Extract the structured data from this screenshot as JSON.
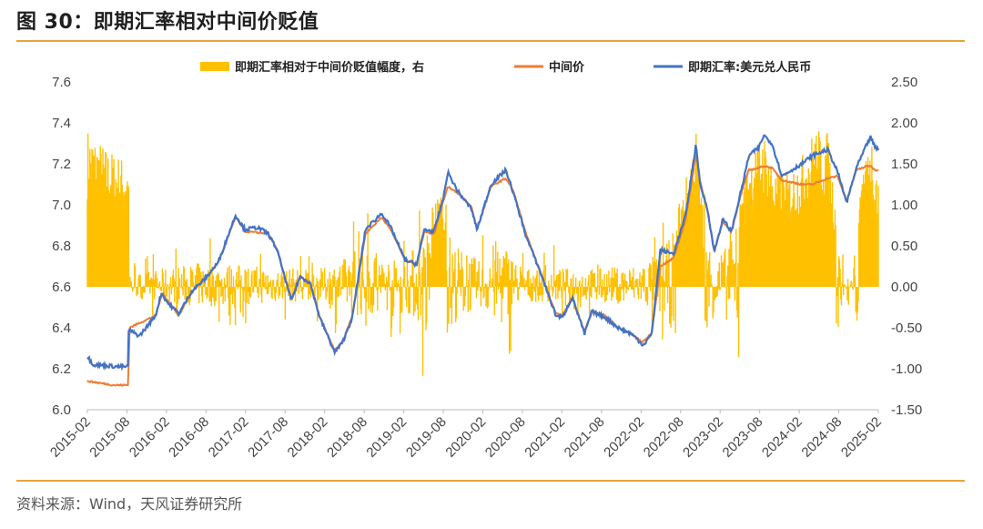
{
  "figure": {
    "title": "图 30：即期汇率相对中间价贬值",
    "source": "资料来源：Wind，天风证券研究所"
  },
  "colors": {
    "bar": "#FFC000",
    "mid": "#ED7D31",
    "spot": "#4472C4",
    "rule": "#E8A33B"
  },
  "chart_data": {
    "type": "line+bar",
    "legend": [
      "即期汇率相对于中间价贬值幅度，右",
      "中间价",
      "即期汇率:美元兑人民币"
    ],
    "legend_position": "top",
    "x_ticks": [
      "2015-02",
      "2015-08",
      "2016-02",
      "2016-08",
      "2017-02",
      "2017-08",
      "2018-02",
      "2018-08",
      "2019-02",
      "2019-08",
      "2020-02",
      "2020-08",
      "2021-02",
      "2021-08",
      "2022-02",
      "2022-08",
      "2023-02",
      "2023-08",
      "2024-02",
      "2024-08",
      "2025-02"
    ],
    "y_left": {
      "min": 6.0,
      "max": 7.6,
      "ticks": [
        "6.0",
        "6.2",
        "6.4",
        "6.6",
        "6.8",
        "7.0",
        "7.2",
        "7.4",
        "7.6"
      ]
    },
    "y_right": {
      "min": -1.5,
      "max": 2.5,
      "ticks": [
        "-1.50",
        "-1.00",
        "-0.50",
        "0.00",
        "0.50",
        "1.00",
        "1.50",
        "2.00",
        "2.50"
      ]
    },
    "grid": false,
    "spot_anchors": [
      [
        "2015-02-01",
        6.26
      ],
      [
        "2015-03-01",
        6.22
      ],
      [
        "2015-07-01",
        6.21
      ],
      [
        "2015-08-10",
        6.21
      ],
      [
        "2015-08-12",
        6.39
      ],
      [
        "2015-10-01",
        6.36
      ],
      [
        "2015-12-15",
        6.46
      ],
      [
        "2016-01-10",
        6.57
      ],
      [
        "2016-02-10",
        6.52
      ],
      [
        "2016-04-01",
        6.47
      ],
      [
        "2016-06-01",
        6.58
      ],
      [
        "2016-08-01",
        6.64
      ],
      [
        "2016-10-01",
        6.72
      ],
      [
        "2016-12-20",
        6.95
      ],
      [
        "2017-02-01",
        6.88
      ],
      [
        "2017-04-01",
        6.89
      ],
      [
        "2017-05-20",
        6.86
      ],
      [
        "2017-07-01",
        6.78
      ],
      [
        "2017-09-05",
        6.53
      ],
      [
        "2017-10-15",
        6.65
      ],
      [
        "2017-12-01",
        6.62
      ],
      [
        "2018-01-15",
        6.45
      ],
      [
        "2018-03-25",
        6.28
      ],
      [
        "2018-05-01",
        6.33
      ],
      [
        "2018-06-15",
        6.45
      ],
      [
        "2018-08-15",
        6.88
      ],
      [
        "2018-10-30",
        6.96
      ],
      [
        "2018-12-15",
        6.88
      ],
      [
        "2019-02-15",
        6.73
      ],
      [
        "2019-04-10",
        6.71
      ],
      [
        "2019-05-15",
        6.88
      ],
      [
        "2019-06-30",
        6.87
      ],
      [
        "2019-08-15",
        7.05
      ],
      [
        "2019-09-01",
        7.16
      ],
      [
        "2019-10-15",
        7.07
      ],
      [
        "2019-12-20",
        6.98
      ],
      [
        "2020-01-15",
        6.88
      ],
      [
        "2020-03-20",
        7.1
      ],
      [
        "2020-05-28",
        7.17
      ],
      [
        "2020-07-01",
        7.06
      ],
      [
        "2020-09-01",
        6.84
      ],
      [
        "2020-11-01",
        6.68
      ],
      [
        "2021-01-15",
        6.46
      ],
      [
        "2021-02-15",
        6.45
      ],
      [
        "2021-04-01",
        6.55
      ],
      [
        "2021-05-28",
        6.37
      ],
      [
        "2021-07-01",
        6.48
      ],
      [
        "2021-09-01",
        6.45
      ],
      [
        "2021-11-01",
        6.4
      ],
      [
        "2022-01-01",
        6.37
      ],
      [
        "2022-02-20",
        6.32
      ],
      [
        "2022-03-01",
        6.32
      ],
      [
        "2022-04-05",
        6.37
      ],
      [
        "2022-05-15",
        6.78
      ],
      [
        "2022-07-15",
        6.76
      ],
      [
        "2022-09-10",
        6.95
      ],
      [
        "2022-10-28",
        7.3
      ],
      [
        "2022-11-15",
        7.1
      ],
      [
        "2022-12-20",
        6.98
      ],
      [
        "2023-01-20",
        6.77
      ],
      [
        "2023-03-01",
        6.93
      ],
      [
        "2023-04-10",
        6.87
      ],
      [
        "2023-06-01",
        7.1
      ],
      [
        "2023-06-30",
        7.24
      ],
      [
        "2023-08-15",
        7.28
      ],
      [
        "2023-09-08",
        7.34
      ],
      [
        "2023-10-15",
        7.3
      ],
      [
        "2023-12-01",
        7.14
      ],
      [
        "2024-01-15",
        7.17
      ],
      [
        "2024-03-01",
        7.2
      ],
      [
        "2024-04-20",
        7.24
      ],
      [
        "2024-06-30",
        7.27
      ],
      [
        "2024-08-15",
        7.16
      ],
      [
        "2024-09-26",
        7.01
      ],
      [
        "2024-11-10",
        7.18
      ],
      [
        "2024-12-31",
        7.3
      ],
      [
        "2025-01-15",
        7.33
      ],
      [
        "2025-02-05",
        7.28
      ],
      [
        "2025-02-20",
        7.27
      ]
    ],
    "mid_anchors": [
      [
        "2015-02-01",
        6.14
      ],
      [
        "2015-06-01",
        6.12
      ],
      [
        "2015-08-10",
        6.12
      ],
      [
        "2015-08-12",
        6.22
      ],
      [
        "2015-08-14",
        6.4
      ],
      [
        "2015-12-15",
        6.46
      ],
      [
        "2016-01-15",
        6.57
      ],
      [
        "2016-04-01",
        6.46
      ],
      [
        "2016-06-01",
        6.58
      ],
      [
        "2016-08-01",
        6.64
      ],
      [
        "2016-10-01",
        6.72
      ],
      [
        "2016-12-20",
        6.94
      ],
      [
        "2017-02-01",
        6.87
      ],
      [
        "2017-05-20",
        6.86
      ],
      [
        "2017-07-01",
        6.78
      ],
      [
        "2017-09-05",
        6.54
      ],
      [
        "2017-10-15",
        6.65
      ],
      [
        "2017-12-01",
        6.62
      ],
      [
        "2018-01-15",
        6.45
      ],
      [
        "2018-03-25",
        6.29
      ],
      [
        "2018-05-01",
        6.33
      ],
      [
        "2018-06-15",
        6.46
      ],
      [
        "2018-08-15",
        6.86
      ],
      [
        "2018-10-30",
        6.94
      ],
      [
        "2018-12-15",
        6.87
      ],
      [
        "2019-02-15",
        6.73
      ],
      [
        "2019-04-10",
        6.71
      ],
      [
        "2019-05-15",
        6.87
      ],
      [
        "2019-06-30",
        6.86
      ],
      [
        "2019-08-15",
        7.03
      ],
      [
        "2019-09-01",
        7.09
      ],
      [
        "2019-10-15",
        7.06
      ],
      [
        "2019-12-20",
        6.99
      ],
      [
        "2020-01-15",
        6.88
      ],
      [
        "2020-03-20",
        7.09
      ],
      [
        "2020-05-28",
        7.13
      ],
      [
        "2020-07-01",
        7.07
      ],
      [
        "2020-09-01",
        6.85
      ],
      [
        "2020-11-01",
        6.68
      ],
      [
        "2021-01-15",
        6.47
      ],
      [
        "2021-02-15",
        6.46
      ],
      [
        "2021-04-01",
        6.55
      ],
      [
        "2021-05-28",
        6.38
      ],
      [
        "2021-07-01",
        6.48
      ],
      [
        "2021-09-01",
        6.46
      ],
      [
        "2021-11-01",
        6.4
      ],
      [
        "2022-01-01",
        6.37
      ],
      [
        "2022-02-20",
        6.33
      ],
      [
        "2022-04-05",
        6.37
      ],
      [
        "2022-05-15",
        6.7
      ],
      [
        "2022-07-15",
        6.74
      ],
      [
        "2022-09-10",
        6.93
      ],
      [
        "2022-10-28",
        7.25
      ],
      [
        "2022-11-15",
        7.12
      ],
      [
        "2022-12-20",
        6.97
      ],
      [
        "2023-01-20",
        6.77
      ],
      [
        "2023-03-01",
        6.92
      ],
      [
        "2023-04-10",
        6.87
      ],
      [
        "2023-06-01",
        7.08
      ],
      [
        "2023-06-30",
        7.17
      ],
      [
        "2023-08-15",
        7.18
      ],
      [
        "2023-09-08",
        7.19
      ],
      [
        "2023-10-15",
        7.18
      ],
      [
        "2023-12-01",
        7.12
      ],
      [
        "2024-01-15",
        7.11
      ],
      [
        "2024-03-01",
        7.1
      ],
      [
        "2024-04-20",
        7.1
      ],
      [
        "2024-06-30",
        7.13
      ],
      [
        "2024-08-15",
        7.14
      ],
      [
        "2024-09-26",
        7.02
      ],
      [
        "2024-11-10",
        7.17
      ],
      [
        "2024-12-31",
        7.19
      ],
      [
        "2025-01-15",
        7.19
      ],
      [
        "2025-02-05",
        7.17
      ],
      [
        "2025-02-20",
        7.17
      ]
    ],
    "deviation_envelope": [
      [
        "2015-02-01",
        1.95
      ],
      [
        "2015-05-01",
        1.7
      ],
      [
        "2015-08-10",
        1.55
      ],
      [
        "2015-08-20",
        0.2
      ],
      [
        "2016-02-01",
        0.3
      ],
      [
        "2016-08-01",
        0.4
      ],
      [
        "2017-02-01",
        0.35
      ],
      [
        "2017-08-01",
        0.3
      ],
      [
        "2018-02-01",
        0.3
      ],
      [
        "2018-08-01",
        0.6
      ],
      [
        "2019-02-01",
        0.4
      ],
      [
        "2019-08-01",
        1.2
      ],
      [
        "2019-10-01",
        0.7
      ],
      [
        "2020-02-01",
        0.4
      ],
      [
        "2020-05-01",
        0.85
      ],
      [
        "2020-08-01",
        0.3
      ],
      [
        "2021-02-01",
        0.3
      ],
      [
        "2021-08-01",
        0.3
      ],
      [
        "2022-02-01",
        0.35
      ],
      [
        "2022-06-01",
        0.6
      ],
      [
        "2022-09-01",
        1.2
      ],
      [
        "2022-10-28",
        1.95
      ],
      [
        "2022-12-01",
        0.9
      ],
      [
        "2023-02-01",
        0.5
      ],
      [
        "2023-05-01",
        0.8
      ],
      [
        "2023-07-01",
        1.6
      ],
      [
        "2023-09-08",
        1.9
      ],
      [
        "2023-11-01",
        1.4
      ],
      [
        "2024-01-01",
        1.4
      ],
      [
        "2024-03-01",
        1.6
      ],
      [
        "2024-05-01",
        1.95
      ],
      [
        "2024-07-01",
        1.9
      ],
      [
        "2024-09-01",
        0.4
      ],
      [
        "2024-10-01",
        -0.3
      ],
      [
        "2024-11-10",
        0.8
      ],
      [
        "2025-01-15",
        1.95
      ],
      [
        "2025-02-20",
        1.35
      ]
    ]
  }
}
